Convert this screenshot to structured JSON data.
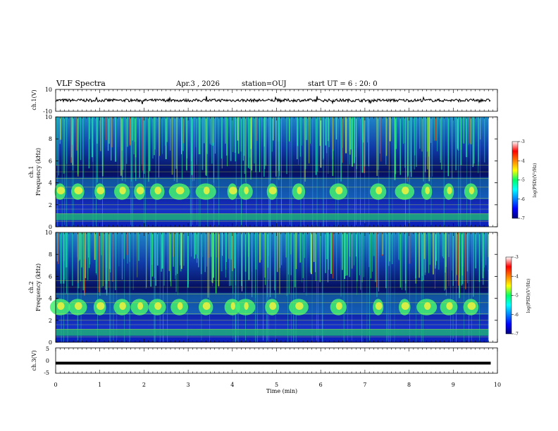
{
  "header": {
    "title": "VLF Spectra",
    "date": "Apr.3 , 2026",
    "station": "station=OUJ",
    "start_ut": "start UT = 6 : 20: 0"
  },
  "chart_data": [
    {
      "type": "line",
      "panel": "ch1-waveform",
      "ylabel": "ch.1(V)",
      "ylim": [
        -10,
        10
      ],
      "yticks": [
        "10",
        "-10"
      ],
      "baseline": 0,
      "trace_color": "#000000"
    },
    {
      "type": "heatmap",
      "panel": "ch1-spectrogram",
      "ylabel_line1": "ch.1",
      "ylabel_line2": "Frequency (kHz)",
      "ylim": [
        0,
        10
      ],
      "yticks": [
        "0",
        "2",
        "4",
        "6",
        "8",
        "10"
      ],
      "xlim": [
        0,
        9.8
      ],
      "chorus_bursts_min": [
        0.1,
        0.5,
        1.0,
        1.5,
        1.9,
        2.3,
        2.8,
        3.4,
        4.0,
        4.3,
        4.9,
        5.5,
        6.4,
        7.3,
        7.9,
        8.4,
        8.9,
        9.4
      ],
      "chorus_band_khz": [
        2.5,
        4.5
      ],
      "colorbar": {
        "label": "log(PSD)(V²/Hz)",
        "ticks": [
          "-3",
          "-4",
          "-5",
          "-6",
          "-7"
        ],
        "range": [
          -7,
          -3
        ]
      }
    },
    {
      "type": "heatmap",
      "panel": "ch2-spectrogram",
      "ylabel_line1": "ch.2",
      "ylabel_line2": "Frequency (kHz)",
      "ylim": [
        0,
        10
      ],
      "yticks": [
        "0",
        "2",
        "4",
        "6",
        "8",
        "10"
      ],
      "xlim": [
        0,
        9.8
      ],
      "chorus_bursts_min": [
        0.1,
        0.5,
        1.0,
        1.5,
        1.9,
        2.3,
        2.8,
        3.4,
        4.0,
        4.3,
        4.9,
        5.5,
        6.4,
        7.3,
        7.9,
        8.4,
        8.9,
        9.4
      ],
      "chorus_band_khz": [
        2.5,
        4.5
      ],
      "colorbar": {
        "label": "log(PSD)(V²/Hz)",
        "ticks": [
          "-3",
          "-4",
          "-5",
          "-6",
          "-7"
        ],
        "range": [
          -7,
          -3
        ]
      }
    },
    {
      "type": "line",
      "panel": "ch3-waveform",
      "ylabel": "ch.3(V)",
      "ylim": [
        -5,
        5
      ],
      "yticks": [
        "5",
        "0",
        "-5"
      ],
      "baseline": -1,
      "trace_color": "#000000",
      "xlabel": "Time (min)",
      "xlim": [
        0,
        10
      ],
      "xticks": [
        "0",
        "1",
        "2",
        "3",
        "4",
        "5",
        "6",
        "7",
        "8",
        "9",
        "10"
      ]
    }
  ]
}
